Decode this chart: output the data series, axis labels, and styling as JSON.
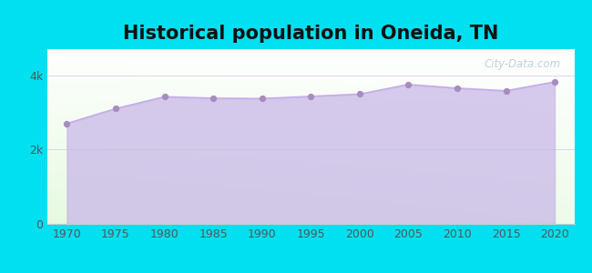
{
  "title": "Historical population in Oneida, TN",
  "years": [
    1970,
    1975,
    1980,
    1985,
    1990,
    1995,
    2000,
    2005,
    2010,
    2015,
    2020
  ],
  "population": [
    2700,
    3100,
    3420,
    3380,
    3370,
    3430,
    3490,
    3750,
    3650,
    3580,
    3820
  ],
  "line_color": "#c5aee8",
  "fill_color": "#c9b8e8",
  "fill_alpha": 0.75,
  "marker_color": "#a78cc0",
  "marker_size": 18,
  "background_outer": "#00e0f0",
  "xlim": [
    1968,
    2022
  ],
  "ylim": [
    0,
    4700
  ],
  "yticks": [
    0,
    2000,
    4000
  ],
  "ytick_labels": [
    "0",
    "2k",
    "4k"
  ],
  "xticks": [
    1970,
    1975,
    1980,
    1985,
    1990,
    1995,
    2000,
    2005,
    2010,
    2015,
    2020
  ],
  "title_fontsize": 15,
  "tick_fontsize": 9,
  "watermark": "City-Data.com",
  "grid_color": "#ddccee",
  "spine_color": "#cccccc"
}
